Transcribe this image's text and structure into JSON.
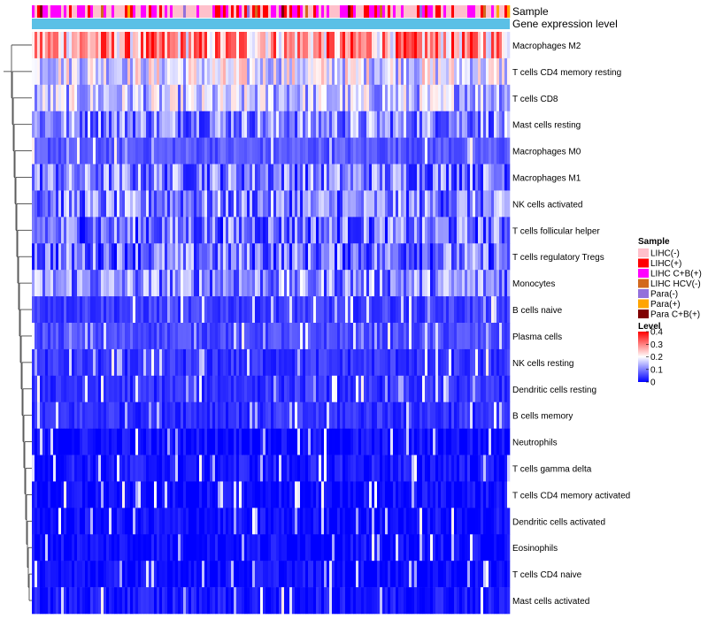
{
  "chart_data": {
    "type": "heatmap",
    "title": "",
    "annotation_tracks": [
      "Sample",
      "Gene expression level"
    ],
    "rows": [
      {
        "name": "Macrophages M2",
        "mean_level": 0.3
      },
      {
        "name": "T cells CD4 memory resting",
        "mean_level": 0.18
      },
      {
        "name": "T cells CD8",
        "mean_level": 0.15
      },
      {
        "name": "Mast cells resting",
        "mean_level": 0.11
      },
      {
        "name": "Macrophages M0",
        "mean_level": 0.07
      },
      {
        "name": "Macrophages M1",
        "mean_level": 0.1
      },
      {
        "name": "NK cells activated",
        "mean_level": 0.1
      },
      {
        "name": "T cells follicular helper",
        "mean_level": 0.09
      },
      {
        "name": "T cells regulatory  Tregs",
        "mean_level": 0.09
      },
      {
        "name": "Monocytes",
        "mean_level": 0.11
      },
      {
        "name": "B cells naive",
        "mean_level": 0.05
      },
      {
        "name": "Plasma cells",
        "mean_level": 0.06
      },
      {
        "name": "NK cells resting",
        "mean_level": 0.04
      },
      {
        "name": "Dendritic cells resting",
        "mean_level": 0.04
      },
      {
        "name": "B cells memory",
        "mean_level": 0.04
      },
      {
        "name": "Neutrophils",
        "mean_level": 0.01
      },
      {
        "name": "T cells gamma delta",
        "mean_level": 0.02
      },
      {
        "name": "T cells CD4 memory activated",
        "mean_level": 0.01
      },
      {
        "name": "Dendritic cells activated",
        "mean_level": 0.01
      },
      {
        "name": "Eosinophils",
        "mean_level": 0.01
      },
      {
        "name": "T cells CD4 naive",
        "mean_level": 0.01
      },
      {
        "name": "Mast cells activated",
        "mean_level": 0.02
      }
    ],
    "legend_sample": {
      "title": "Sample",
      "items": [
        {
          "label": "LIHC(-)",
          "color": "#ffc0cb"
        },
        {
          "label": "LIHC(+)",
          "color": "#ff0000"
        },
        {
          "label": "LIHC C+B(+)",
          "color": "#ff00ff"
        },
        {
          "label": "LIHC HCV(-)",
          "color": "#d2691e"
        },
        {
          "label": "Para(-)",
          "color": "#9370db"
        },
        {
          "label": "Para(+)",
          "color": "#ffa500"
        },
        {
          "label": "Para C+B(+)",
          "color": "#800000"
        }
      ]
    },
    "legend_level": {
      "title": "Level",
      "ticks": [
        "0.4",
        "0.3",
        "0.2",
        "0.1",
        "0"
      ],
      "range": [
        0,
        0.4
      ],
      "colors": {
        "low": "#0000ff",
        "mid": "#ffffff",
        "high": "#ff0000"
      }
    },
    "gene_expression_color": "#5bc0e6",
    "dendrogram_side": "left",
    "legend_position": "right"
  }
}
